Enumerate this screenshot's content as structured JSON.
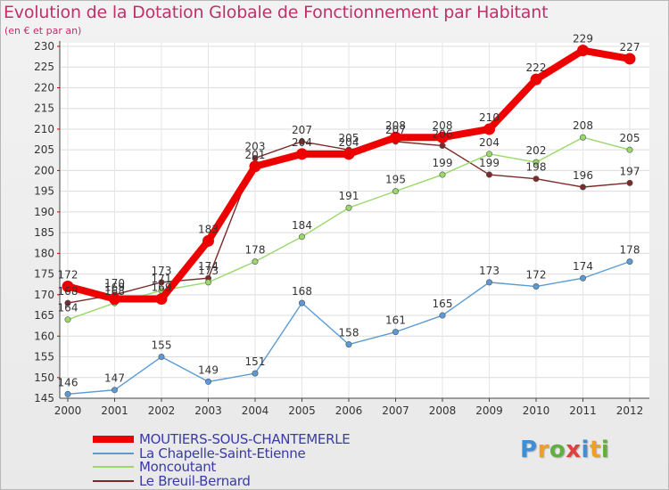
{
  "chart_data": {
    "type": "line",
    "title": "Evolution de la Dotation Globale de Fonctionnement par Habitant",
    "subtitle": "(en € et par an)",
    "x": [
      "2000",
      "2001",
      "2002",
      "2003",
      "2004",
      "2005",
      "2006",
      "2007",
      "2008",
      "2009",
      "2010",
      "2011",
      "2012"
    ],
    "ylim": [
      145,
      230
    ],
    "yticks": [
      145,
      150,
      155,
      160,
      165,
      170,
      175,
      180,
      185,
      190,
      195,
      200,
      205,
      210,
      215,
      220,
      225,
      230
    ],
    "grid": true,
    "legend_position": "bottom-left",
    "series": [
      {
        "name": "MOUTIERS-SOUS-CHANTEMERLE",
        "color": "#ee0000",
        "values": [
          172,
          169,
          169,
          183,
          201,
          204,
          204,
          208,
          208,
          210,
          222,
          229,
          227
        ]
      },
      {
        "name": "La Chapelle-Saint-Etienne",
        "color": "#5b9bd5",
        "values": [
          146,
          147,
          155,
          149,
          151,
          168,
          158,
          161,
          165,
          173,
          172,
          174,
          178
        ]
      },
      {
        "name": "Moncoutant",
        "color": "#9ad86a",
        "values": [
          164,
          168,
          171,
          173,
          178,
          184,
          191,
          195,
          199,
          204,
          202,
          208,
          205
        ]
      },
      {
        "name": "Le Breuil-Bernard",
        "color": "#7a2a2a",
        "values": [
          168,
          170,
          173,
          174,
          203,
          207,
          205,
          207,
          206,
          199,
          198,
          196,
          197
        ]
      }
    ]
  },
  "logo": {
    "letters": [
      "P",
      "r",
      "o",
      "x",
      "i",
      "t",
      "i"
    ],
    "colors": [
      "#3f8fd6",
      "#f0a020",
      "#60b040",
      "#e04040",
      "#3f8fd6",
      "#f0a020",
      "#60b040"
    ]
  }
}
